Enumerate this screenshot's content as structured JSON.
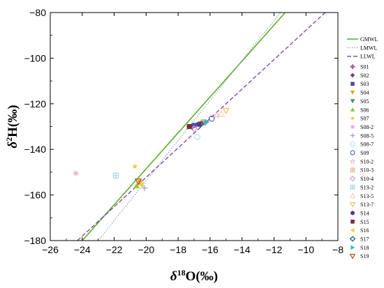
{
  "chart_data": {
    "type": "scatter",
    "xlabel": "δ18O(‰)",
    "ylabel": "δ2H(‰)",
    "xlim": [
      -26,
      -8
    ],
    "ylim": [
      -180,
      -80
    ],
    "xticks": [
      -26,
      -24,
      -22,
      -20,
      -18,
      -16,
      -14,
      -12,
      -10,
      -8
    ],
    "yticks": [
      -180,
      -160,
      -140,
      -120,
      -100,
      -80
    ],
    "grid": false,
    "legend_position": "right",
    "lines": [
      {
        "name": "GMWL",
        "style": "solid",
        "color": "#5BB02E",
        "points": [
          [
            -24.0,
            -180
          ],
          [
            -11.3,
            -80
          ]
        ]
      },
      {
        "name": "LMWL",
        "style": "dotted",
        "color": "#8899AA",
        "points": [
          [
            -23.0,
            -180
          ],
          [
            -11.6,
            -80
          ]
        ]
      },
      {
        "name": "LLWL",
        "style": "dashed",
        "color": "#7B3F9E",
        "points": [
          [
            -24.3,
            -180
          ],
          [
            -8.8,
            -80
          ]
        ]
      }
    ],
    "series": [
      {
        "name": "S01",
        "marker": "plus-thick",
        "color": "#B0599E",
        "points": [
          [
            -17.1,
            -130
          ]
        ]
      },
      {
        "name": "S02",
        "marker": "diamond",
        "color": "#7B3F6E",
        "points": [
          [
            -16.5,
            -128.5
          ]
        ]
      },
      {
        "name": "S03",
        "marker": "square",
        "color": "#4A4FA0",
        "points": [
          [
            -17.0,
            -129.5
          ]
        ]
      },
      {
        "name": "S04",
        "marker": "triangle-down",
        "color": "#E5A023",
        "points": [
          [
            -20.4,
            -154.5
          ]
        ]
      },
      {
        "name": "S05",
        "marker": "triangle-down",
        "color": "#3A9A5C",
        "points": [
          [
            -16.3,
            -128.5
          ]
        ]
      },
      {
        "name": "S06",
        "marker": "triangle-up",
        "color": "#8CC63F",
        "points": [
          [
            -20.6,
            -156
          ]
        ]
      },
      {
        "name": "S07",
        "marker": "star",
        "color": "#F3C43B",
        "points": [
          [
            -20.7,
            -147.5
          ]
        ]
      },
      {
        "name": "S08-2",
        "marker": "asterisk",
        "color": "#E6A0C8",
        "points": [
          [
            -24.4,
            -150.5
          ]
        ]
      },
      {
        "name": "S08-5",
        "marker": "plus",
        "color": "#8E8EC8",
        "points": [
          [
            -20.1,
            -157
          ]
        ]
      },
      {
        "name": "S08-7",
        "marker": "circle-open",
        "color": "#A8D8EA",
        "points": [
          [
            -16.8,
            -134.5
          ]
        ]
      },
      {
        "name": "S09",
        "marker": "circle-open",
        "color": "#3A4FA0",
        "points": [
          [
            -15.9,
            -126.5
          ]
        ]
      },
      {
        "name": "S10-2",
        "marker": "star-open",
        "color": "#F3B0C8",
        "points": [
          [
            -15.6,
            -125
          ]
        ]
      },
      {
        "name": "S10-3",
        "marker": "square-cross",
        "color": "#E8A080",
        "points": [
          [
            -16.4,
            -128
          ]
        ]
      },
      {
        "name": "S10-4",
        "marker": "diamond-open",
        "color": "#C8A0D8",
        "points": [
          [
            -17.0,
            -131
          ]
        ]
      },
      {
        "name": "S13-2",
        "marker": "square-cross",
        "color": "#8ED0E8",
        "points": [
          [
            -21.9,
            -151.5
          ]
        ]
      },
      {
        "name": "S13-5",
        "marker": "triangle-up-open",
        "color": "#F3C8A0",
        "points": [
          [
            -15.3,
            -124.5
          ]
        ]
      },
      {
        "name": "S13-7",
        "marker": "triangle-down-open",
        "color": "#F3C060",
        "points": [
          [
            -15.0,
            -123
          ]
        ]
      },
      {
        "name": "S14",
        "marker": "hexagon",
        "color": "#6A2C8A",
        "points": [
          [
            -16.7,
            -129
          ]
        ]
      },
      {
        "name": "S15",
        "marker": "square",
        "color": "#7A2A3A",
        "points": [
          [
            -17.3,
            -130
          ]
        ]
      },
      {
        "name": "S16",
        "marker": "triangle-left",
        "color": "#F3D040",
        "points": [
          [
            -20.3,
            -155.5
          ]
        ]
      },
      {
        "name": "S17",
        "marker": "diamond-open",
        "color": "#1A6A6A",
        "points": [
          [
            -16.6,
            -129
          ]
        ]
      },
      {
        "name": "S18",
        "marker": "triangle-right",
        "color": "#30B8C8",
        "points": [
          [
            -16.2,
            -128
          ]
        ]
      },
      {
        "name": "S19",
        "marker": "triangle-down-open",
        "color": "#B05020",
        "points": [
          [
            -20.5,
            -154
          ]
        ]
      }
    ]
  }
}
